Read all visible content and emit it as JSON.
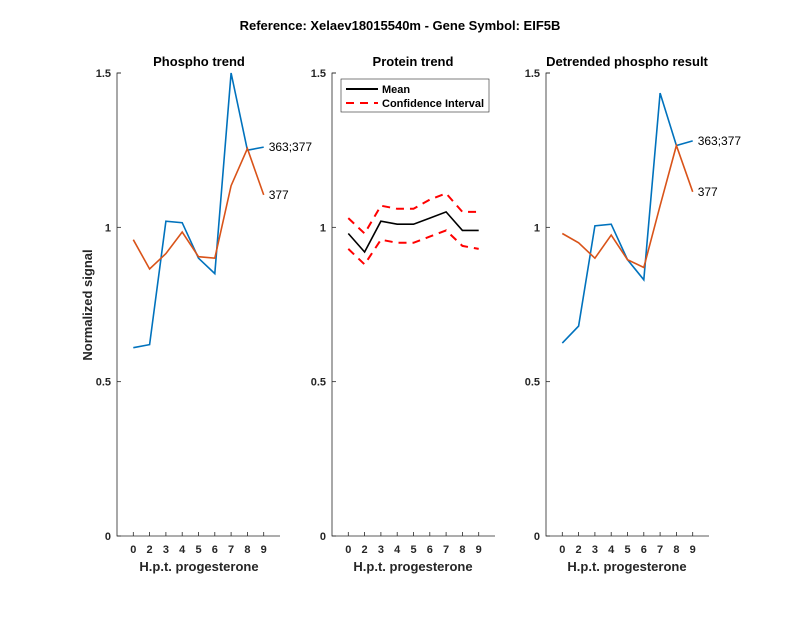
{
  "figure": {
    "suptitle": "Reference:  Xelaev18015540m - Gene Symbol:  EIF5B"
  },
  "colors": {
    "site_363_377": "#0072BD",
    "site_377": "#D95319",
    "mean": "#000000",
    "ci": "#FF0000"
  },
  "chart_data": [
    {
      "type": "line",
      "title": "Phospho trend",
      "xlabel": "H.p.t. progesterone",
      "ylabel": "Normalized signal",
      "categories": [
        "0",
        "2",
        "3",
        "4",
        "5",
        "6",
        "7",
        "8",
        "9"
      ],
      "ylim": [
        0,
        1.5
      ],
      "yticks": [
        "0",
        "0.5",
        "1",
        "1.5"
      ],
      "grid": false,
      "series": [
        {
          "name": "363;377",
          "color": "#0072BD",
          "dash": false,
          "values": [
            0.61,
            0.62,
            1.02,
            1.015,
            0.9,
            0.85,
            1.5,
            1.25,
            1.26
          ]
        },
        {
          "name": "377",
          "color": "#D95319",
          "dash": false,
          "values": [
            0.96,
            0.865,
            0.915,
            0.985,
            0.905,
            0.9,
            1.135,
            1.255,
            1.105
          ]
        }
      ]
    },
    {
      "type": "line",
      "title": "Protein trend",
      "xlabel": "H.p.t. progesterone",
      "ylabel": "",
      "categories": [
        "0",
        "2",
        "3",
        "4",
        "5",
        "6",
        "7",
        "8",
        "9"
      ],
      "ylim": [
        0,
        1.5
      ],
      "yticks": [
        "0",
        "0.5",
        "1",
        "1.5"
      ],
      "grid": false,
      "legend": {
        "placement": "top-left",
        "entries": [
          "Mean",
          "Confidence Interval"
        ]
      },
      "series": [
        {
          "name": "Mean",
          "color": "#000000",
          "dash": false,
          "values": [
            0.98,
            0.92,
            1.02,
            1.01,
            1.01,
            1.03,
            1.05,
            0.99,
            0.99
          ]
        },
        {
          "name": "Confidence Interval",
          "color": "#FF0000",
          "dash": true,
          "values": [
            1.03,
            0.98,
            1.07,
            1.06,
            1.06,
            1.09,
            1.11,
            1.05,
            1.05
          ]
        },
        {
          "name": "Confidence Interval (lower)",
          "color": "#FF0000",
          "dash": true,
          "values": [
            0.93,
            0.88,
            0.96,
            0.95,
            0.95,
            0.97,
            0.99,
            0.94,
            0.93
          ]
        }
      ]
    },
    {
      "type": "line",
      "title": "Detrended phospho result",
      "xlabel": "H.p.t. progesterone",
      "ylabel": "",
      "categories": [
        "0",
        "2",
        "3",
        "4",
        "5",
        "6",
        "7",
        "8",
        "9"
      ],
      "ylim": [
        0,
        1.5
      ],
      "yticks": [
        "0",
        "0.5",
        "1",
        "1.5"
      ],
      "grid": false,
      "series": [
        {
          "name": "363;377",
          "color": "#0072BD",
          "dash": false,
          "values": [
            0.625,
            0.68,
            1.005,
            1.01,
            0.895,
            0.83,
            1.435,
            1.265,
            1.28
          ]
        },
        {
          "name": "377",
          "color": "#D95319",
          "dash": false,
          "values": [
            0.98,
            0.95,
            0.9,
            0.975,
            0.895,
            0.87,
            1.07,
            1.265,
            1.115
          ]
        }
      ]
    }
  ]
}
